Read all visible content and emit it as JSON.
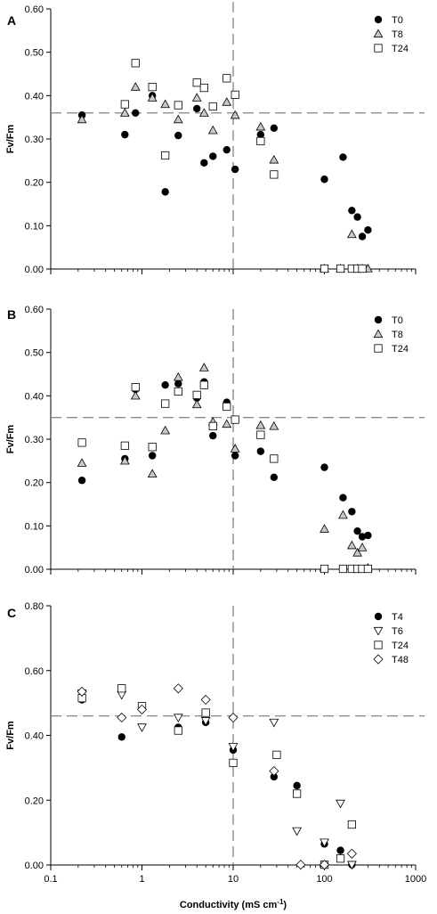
{
  "figure": {
    "xlabel_main": "Conductivity (mS cm",
    "xlabel_sup": "-1",
    "xlabel_end": ")"
  },
  "colors": {
    "ink": "#000000",
    "open_fill": "#ffffff",
    "triangle_fill": "#c8c8c8",
    "dash": "#777777"
  },
  "chart_data": [
    {
      "type": "scatter",
      "panel": "A",
      "ylabel": "Fv/Fm",
      "xscale": "log",
      "xlim": [
        0.1,
        1000
      ],
      "ylim": [
        0,
        0.6
      ],
      "xticks": [
        "0.1",
        "1",
        "10",
        "100",
        "1000"
      ],
      "yticks": [
        "0.00",
        "0.10",
        "0.20",
        "0.30",
        "0.40",
        "0.50",
        "0.60"
      ],
      "hline": 0.36,
      "vline": 10,
      "legend_position": "top-right",
      "series": [
        {
          "name": "T0",
          "marker": "filled-circle",
          "points": [
            [
              0.22,
              0.355
            ],
            [
              0.65,
              0.31
            ],
            [
              0.85,
              0.36
            ],
            [
              1.3,
              0.4
            ],
            [
              1.8,
              0.178
            ],
            [
              2.5,
              0.308
            ],
            [
              4,
              0.37
            ],
            [
              4.8,
              0.245
            ],
            [
              6,
              0.26
            ],
            [
              8.5,
              0.275
            ],
            [
              10.5,
              0.23
            ],
            [
              20,
              0.31
            ],
            [
              28,
              0.325
            ],
            [
              100,
              0.207
            ],
            [
              160,
              0.258
            ],
            [
              200,
              0.135
            ],
            [
              230,
              0.12
            ],
            [
              260,
              0.075
            ],
            [
              300,
              0.09
            ]
          ]
        },
        {
          "name": "T8",
          "marker": "gray-triangle",
          "points": [
            [
              0.22,
              0.345
            ],
            [
              0.65,
              0.36
            ],
            [
              0.85,
              0.42
            ],
            [
              1.3,
              0.395
            ],
            [
              1.8,
              0.38
            ],
            [
              2.5,
              0.345
            ],
            [
              4,
              0.395
            ],
            [
              4.8,
              0.36
            ],
            [
              6,
              0.32
            ],
            [
              8.5,
              0.385
            ],
            [
              10.5,
              0.355
            ],
            [
              20,
              0.328
            ],
            [
              28,
              0.252
            ],
            [
              100,
              0.001
            ],
            [
              150,
              0.001
            ],
            [
              200,
              0.08
            ],
            [
              230,
              0.001
            ],
            [
              260,
              0.001
            ],
            [
              300,
              0.001
            ]
          ]
        },
        {
          "name": "T24",
          "marker": "open-square",
          "points": [
            [
              0.65,
              0.38
            ],
            [
              0.85,
              0.475
            ],
            [
              1.3,
              0.42
            ],
            [
              1.8,
              0.262
            ],
            [
              2.5,
              0.378
            ],
            [
              4,
              0.43
            ],
            [
              4.8,
              0.418
            ],
            [
              6,
              0.375
            ],
            [
              8.5,
              0.44
            ],
            [
              10.5,
              0.402
            ],
            [
              20,
              0.295
            ],
            [
              28,
              0.218
            ],
            [
              100,
              0.001
            ],
            [
              150,
              0.001
            ],
            [
              200,
              0.001
            ],
            [
              230,
              0.001
            ],
            [
              260,
              0.001
            ]
          ]
        }
      ]
    },
    {
      "type": "scatter",
      "panel": "B",
      "ylabel": "Fv/Fm",
      "xscale": "log",
      "xlim": [
        0.1,
        1000
      ],
      "ylim": [
        0,
        0.6
      ],
      "xticks": [
        "0.1",
        "1",
        "10",
        "100",
        "1000"
      ],
      "yticks": [
        "0.00",
        "0.10",
        "0.20",
        "0.30",
        "0.40",
        "0.50",
        "0.60"
      ],
      "hline": 0.35,
      "vline": 10,
      "legend_position": "top-right",
      "series": [
        {
          "name": "T0",
          "marker": "filled-circle",
          "points": [
            [
              0.22,
              0.205
            ],
            [
              0.65,
              0.255
            ],
            [
              0.85,
              0.415
            ],
            [
              1.3,
              0.262
            ],
            [
              1.8,
              0.425
            ],
            [
              2.5,
              0.428
            ],
            [
              4,
              0.395
            ],
            [
              4.8,
              0.432
            ],
            [
              6,
              0.308
            ],
            [
              8.5,
              0.385
            ],
            [
              10.5,
              0.262
            ],
            [
              20,
              0.272
            ],
            [
              28,
              0.212
            ],
            [
              100,
              0.235
            ],
            [
              160,
              0.165
            ],
            [
              200,
              0.133
            ],
            [
              230,
              0.088
            ],
            [
              260,
              0.075
            ],
            [
              300,
              0.078
            ]
          ]
        },
        {
          "name": "T8",
          "marker": "gray-triangle",
          "points": [
            [
              0.22,
              0.245
            ],
            [
              0.65,
              0.25
            ],
            [
              0.85,
              0.4
            ],
            [
              1.3,
              0.22
            ],
            [
              1.8,
              0.32
            ],
            [
              2.5,
              0.443
            ],
            [
              4,
              0.38
            ],
            [
              4.8,
              0.465
            ],
            [
              6,
              0.34
            ],
            [
              8.5,
              0.335
            ],
            [
              10.5,
              0.278
            ],
            [
              20,
              0.332
            ],
            [
              28,
              0.33
            ],
            [
              100,
              0.093
            ],
            [
              160,
              0.125
            ],
            [
              200,
              0.055
            ],
            [
              230,
              0.038
            ],
            [
              260,
              0.05
            ],
            [
              300,
              0.003
            ]
          ]
        },
        {
          "name": "T24",
          "marker": "open-square",
          "points": [
            [
              0.22,
              0.292
            ],
            [
              0.65,
              0.285
            ],
            [
              0.85,
              0.42
            ],
            [
              1.3,
              0.282
            ],
            [
              1.8,
              0.382
            ],
            [
              2.5,
              0.41
            ],
            [
              4,
              0.402
            ],
            [
              4.8,
              0.425
            ],
            [
              6,
              0.33
            ],
            [
              8.5,
              0.375
            ],
            [
              10.5,
              0.345
            ],
            [
              20,
              0.31
            ],
            [
              28,
              0.255
            ],
            [
              100,
              0.001
            ],
            [
              160,
              0.001
            ],
            [
              200,
              0.001
            ],
            [
              230,
              0.001
            ],
            [
              260,
              0.001
            ],
            [
              300,
              0.001
            ]
          ]
        }
      ]
    },
    {
      "type": "scatter",
      "panel": "C",
      "ylabel": "Fv/Fm",
      "xscale": "log",
      "xlim": [
        0.1,
        1000
      ],
      "ylim": [
        0,
        0.8
      ],
      "xticks": [
        "0.1",
        "1",
        "10",
        "100",
        "1000"
      ],
      "yticks": [
        "0.00",
        "0.20",
        "0.40",
        "0.60",
        "0.80"
      ],
      "hline": 0.46,
      "vline": 10,
      "legend_position": "top-right",
      "series": [
        {
          "name": "T4",
          "marker": "filled-circle",
          "points": [
            [
              0.22,
              0.51
            ],
            [
              0.6,
              0.395
            ],
            [
              1,
              0.49
            ],
            [
              2.5,
              0.425
            ],
            [
              5,
              0.44
            ],
            [
              10,
              0.355
            ],
            [
              28,
              0.272
            ],
            [
              50,
              0.245
            ],
            [
              100,
              0.065
            ],
            [
              150,
              0.045
            ],
            [
              200,
              0.001
            ]
          ]
        },
        {
          "name": "T6",
          "marker": "open-down-triangle",
          "points": [
            [
              0.22,
              0.53
            ],
            [
              0.6,
              0.525
            ],
            [
              1,
              0.425
            ],
            [
              2.5,
              0.455
            ],
            [
              5,
              0.445
            ],
            [
              10,
              0.365
            ],
            [
              28,
              0.44
            ],
            [
              50,
              0.105
            ],
            [
              100,
              0.07
            ],
            [
              150,
              0.19
            ],
            [
              200,
              0.001
            ]
          ]
        },
        {
          "name": "T24",
          "marker": "open-square",
          "points": [
            [
              0.22,
              0.515
            ],
            [
              0.6,
              0.545
            ],
            [
              1,
              0.49
            ],
            [
              2.5,
              0.415
            ],
            [
              5,
              0.47
            ],
            [
              10,
              0.315
            ],
            [
              30,
              0.34
            ],
            [
              50,
              0.22
            ],
            [
              100,
              0.001
            ],
            [
              150,
              0.02
            ],
            [
              200,
              0.125
            ]
          ]
        },
        {
          "name": "T48",
          "marker": "open-diamond",
          "points": [
            [
              0.22,
              0.535
            ],
            [
              0.6,
              0.455
            ],
            [
              1,
              0.48
            ],
            [
              2.5,
              0.545
            ],
            [
              5,
              0.51
            ],
            [
              10,
              0.455
            ],
            [
              28,
              0.29
            ],
            [
              55,
              0.001
            ],
            [
              100,
              0.001
            ],
            [
              200,
              0.035
            ]
          ]
        }
      ]
    }
  ]
}
